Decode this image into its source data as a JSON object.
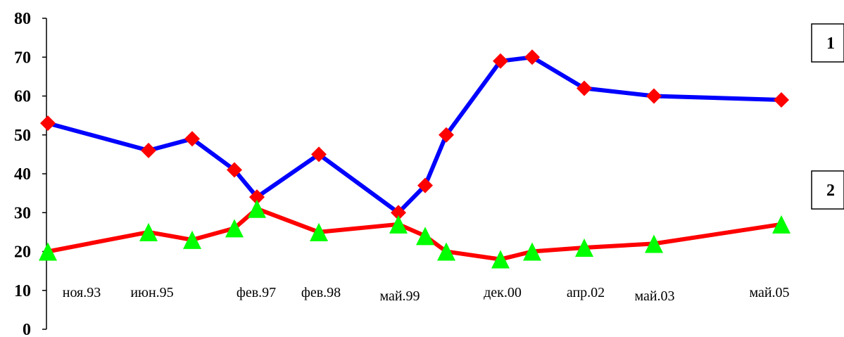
{
  "chart_data": {
    "type": "line",
    "title": "",
    "xlabel": "",
    "ylabel": "",
    "ylim": [
      0,
      80
    ],
    "yticks": [
      "0",
      "10",
      "20",
      "30",
      "40",
      "50",
      "60",
      "70",
      "80"
    ],
    "x_labels": [
      "ноя.93",
      "июн.95",
      "фев.97",
      "фев.98",
      "май.99",
      "дек.00",
      "апр.02",
      "май.03",
      "май.05"
    ],
    "series": [
      {
        "name": "1",
        "line_color": "#0000ff",
        "marker_color": "#ff0000",
        "marker": "diamond",
        "values": [
          53,
          46,
          49,
          41,
          34,
          45,
          30,
          37,
          50,
          69,
          70,
          62,
          60,
          59
        ]
      },
      {
        "name": "2",
        "line_color": "#ff0000",
        "marker_color": "#00ff00",
        "marker": "triangle",
        "values": [
          20,
          25,
          23,
          26,
          31,
          25,
          27,
          24,
          20,
          18,
          20,
          21,
          22,
          27
        ]
      }
    ],
    "grid": false,
    "legend_position": "right"
  }
}
